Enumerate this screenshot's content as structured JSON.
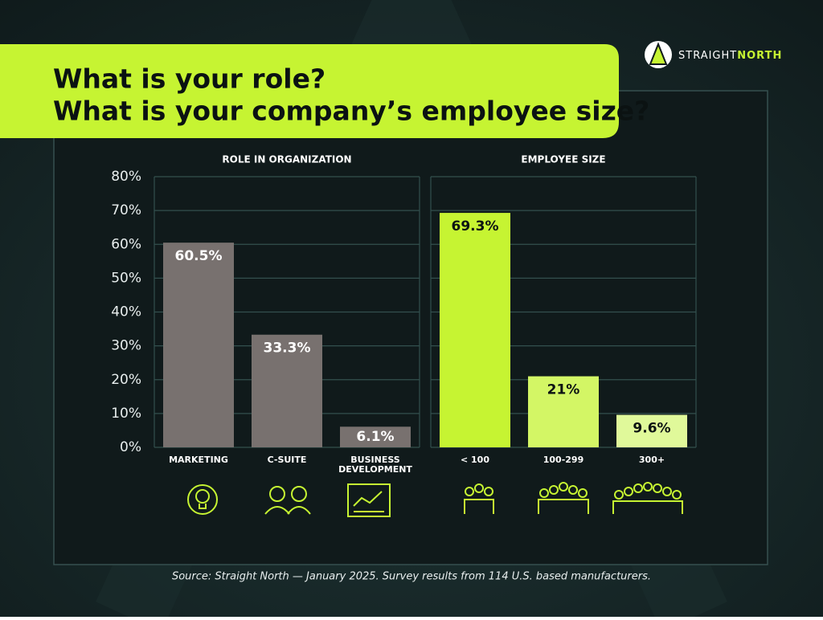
{
  "header": {
    "title_lines": [
      "What is your role?",
      "What is your company’s employee size?"
    ],
    "brand_first": "STRAIGHT",
    "brand_second": "NORTH"
  },
  "chart_data": [
    {
      "type": "bar",
      "title": "ROLE IN ORGANIZATION",
      "categories": [
        "MARKETING",
        "C-SUITE",
        "BUSINESS DEVELOPMENT"
      ],
      "values": [
        60.5,
        33.3,
        6.1
      ],
      "value_labels": [
        "60.5%",
        "33.3%",
        "6.1%"
      ],
      "colors": [
        "#78716f",
        "#78716f",
        "#78716f"
      ],
      "ylim": [
        0,
        80
      ],
      "yticks": [
        {
          "value": 0,
          "label": "0%"
        },
        {
          "value": 10,
          "label": "10%"
        },
        {
          "value": 20,
          "label": "20%"
        },
        {
          "value": 30,
          "label": "30%"
        },
        {
          "value": 40,
          "label": "40%"
        },
        {
          "value": 50,
          "label": "50%"
        },
        {
          "value": 60,
          "label": "60%"
        },
        {
          "value": 70,
          "label": "70%"
        },
        {
          "value": 80,
          "label": "80%"
        }
      ],
      "grid": true
    },
    {
      "type": "bar",
      "title": "EMPLOYEE SIZE",
      "categories": [
        "< 100",
        "100-299",
        "300+"
      ],
      "values": [
        69.3,
        21,
        9.6
      ],
      "value_labels": [
        "69.3%",
        "21%",
        "9.6%"
      ],
      "colors": [
        "#c6f432",
        "#d3f665",
        "#e0f99a"
      ],
      "ylim": [
        0,
        80
      ],
      "grid": true
    }
  ],
  "source": "Source: Straight North — January 2025. Survey results from 114 U.S. based manufacturers."
}
